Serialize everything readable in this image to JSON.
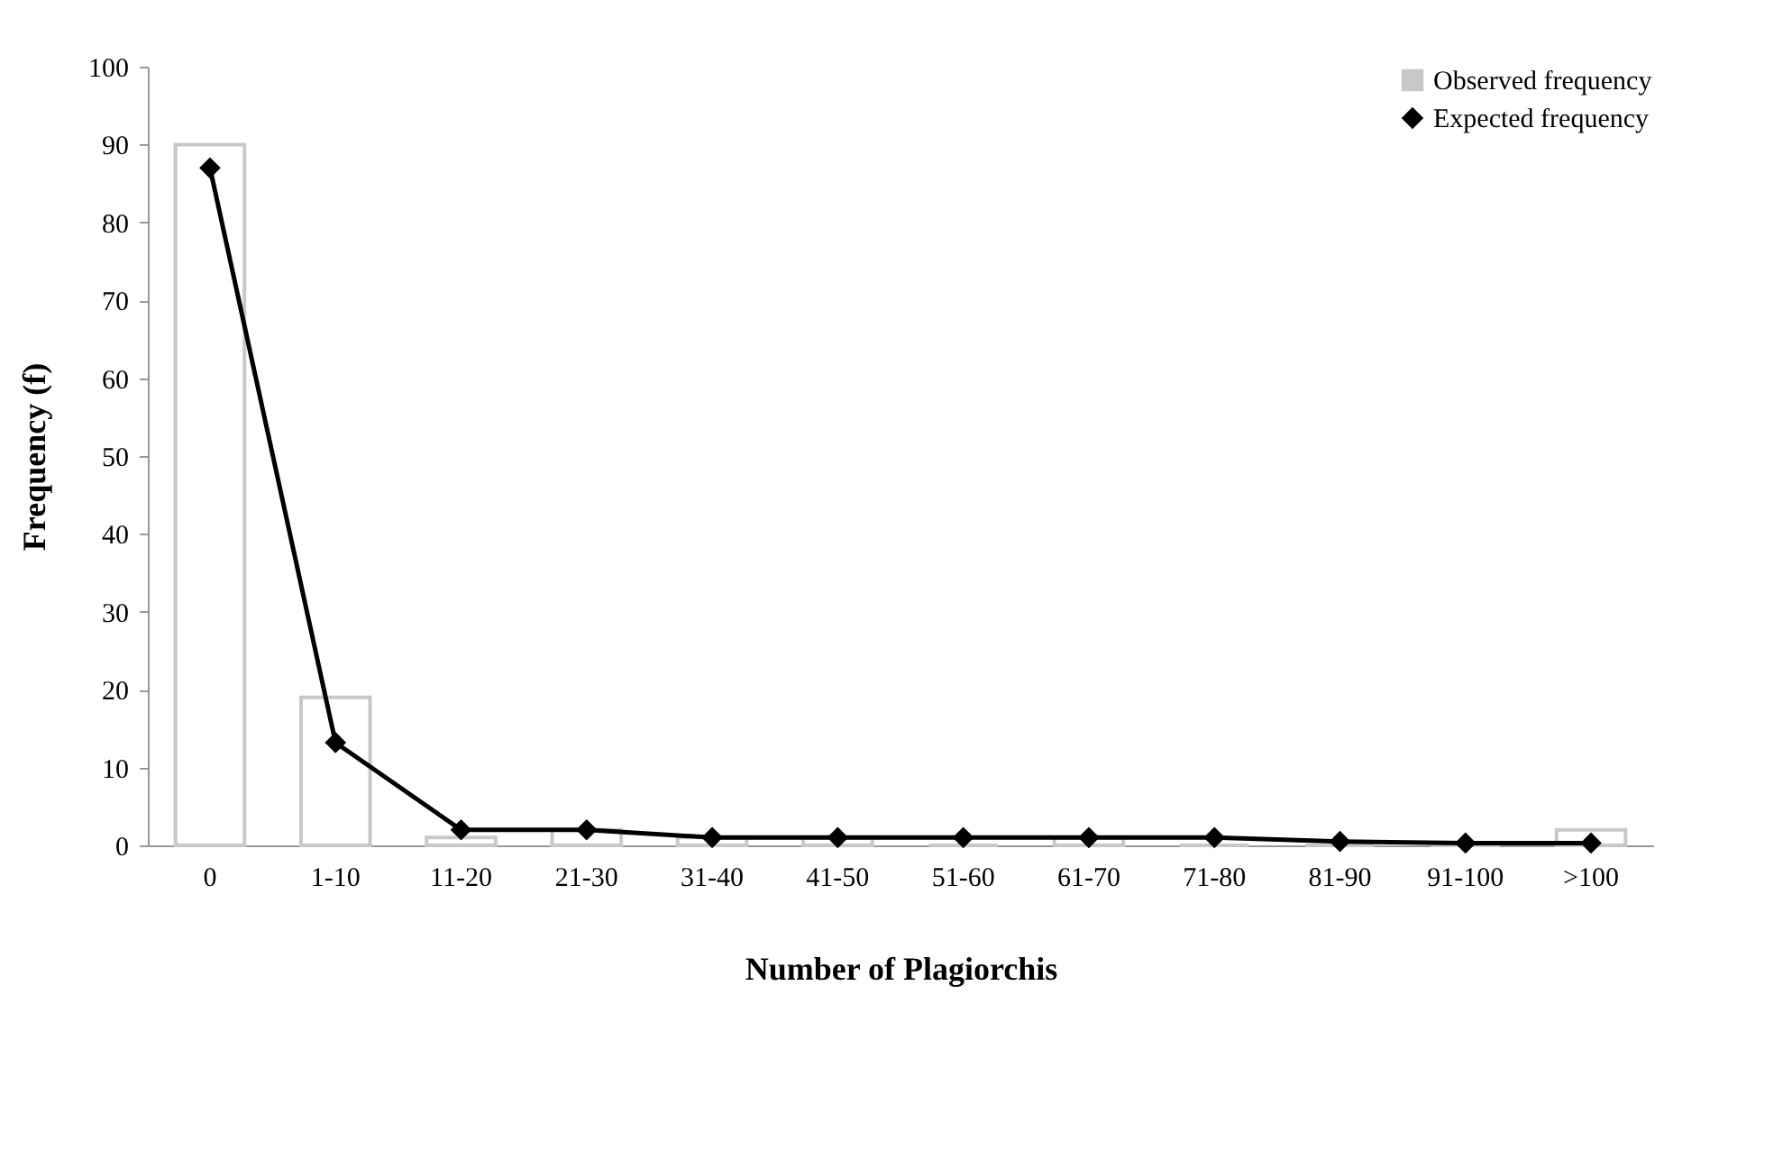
{
  "chart_data": {
    "type": "bar",
    "xlabel": "Number of Plagiorchis",
    "ylabel": "Frequency (f)",
    "categories": [
      "0",
      "1-10",
      "11-20",
      "21-30",
      "31-40",
      "41-50",
      "51-60",
      "61-70",
      "71-80",
      "81-90",
      "91-100",
      ">100"
    ],
    "series": [
      {
        "name": "Observed frequency",
        "color": "#c8c8c8",
        "values": [
          90,
          19,
          1,
          2,
          1,
          1,
          0,
          1,
          0,
          0,
          0,
          2
        ]
      },
      {
        "name": "Expected frequency",
        "type": "line",
        "color": "#000000",
        "values": [
          87,
          13.2,
          2,
          2,
          1,
          1,
          1,
          1,
          1,
          0.5,
          0.3,
          0.3
        ]
      }
    ],
    "ylim": [
      0,
      100
    ],
    "yticks": [
      0,
      10,
      20,
      30,
      40,
      50,
      60,
      70,
      80,
      90,
      100
    ],
    "grid": false,
    "legend": "top right",
    "marker": "diamond",
    "line_style": "solid"
  }
}
